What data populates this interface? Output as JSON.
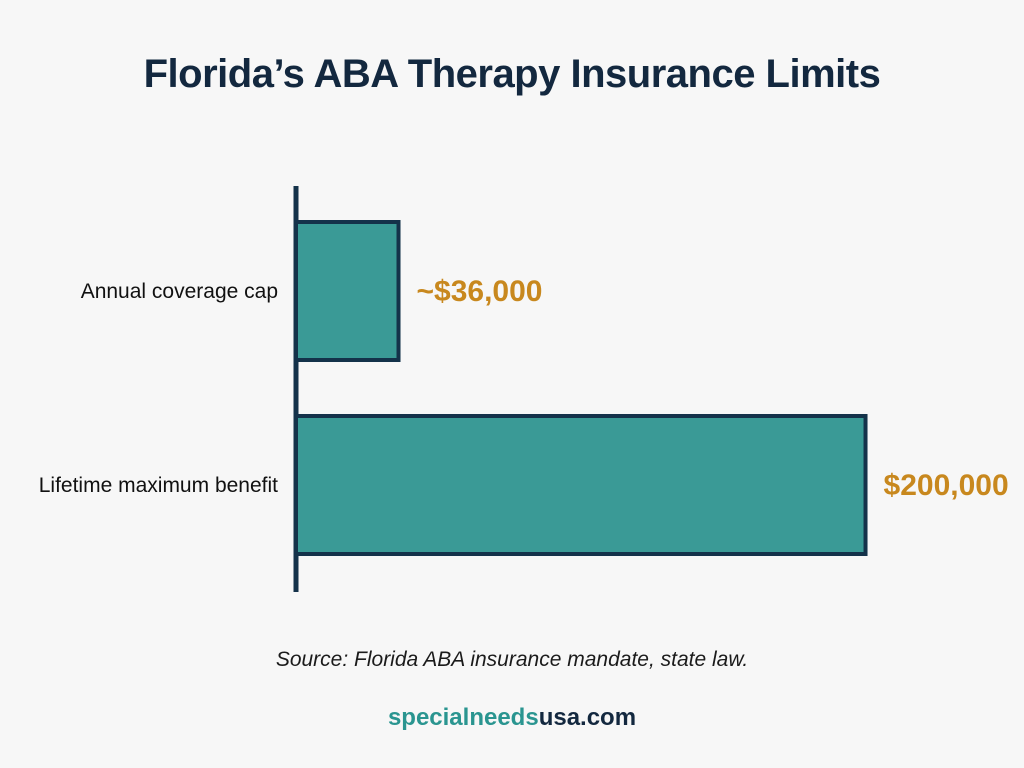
{
  "chart_data": {
    "type": "bar",
    "orientation": "horizontal",
    "title": "Florida’s ABA Therapy Insurance Limits",
    "categories": [
      "Annual coverage cap",
      "Lifetime maximum benefit"
    ],
    "values": [
      36000,
      200000
    ],
    "value_labels": [
      "~$36,000",
      "$200,000"
    ],
    "xlim": [
      0,
      210000
    ],
    "grid": false,
    "legend": "none",
    "source": "Source: Florida ABA insurance mandate, state law."
  },
  "brand": {
    "part1": "specialneeds",
    "part2": "usa.com"
  },
  "colors": {
    "bar_fill": "#3a9a96",
    "bar_stroke": "#14324a",
    "axis": "#14324a",
    "value_label": "#c8881e",
    "title": "#13283f",
    "brand_primary": "#2a9590",
    "brand_secondary": "#13283f"
  }
}
